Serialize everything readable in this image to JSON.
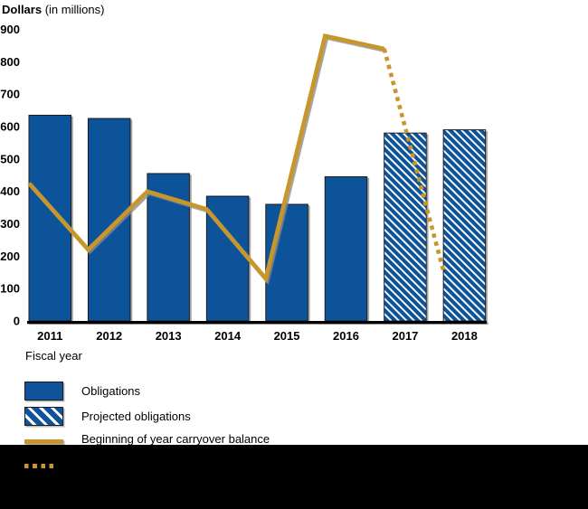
{
  "header": {
    "ylabel_bold": "Dollars",
    "ylabel_rest": " (in millions)"
  },
  "chart_data": {
    "type": "bar",
    "categories": [
      "2011",
      "2012",
      "2013",
      "2014",
      "2015",
      "2016",
      "2017",
      "2018"
    ],
    "series": [
      {
        "name": "Obligations",
        "type": "bar",
        "pattern": "solid",
        "values": [
          635,
          625,
          455,
          385,
          360,
          445,
          null,
          null
        ]
      },
      {
        "name": "Projected obligations",
        "type": "bar",
        "pattern": "hatched",
        "values": [
          null,
          null,
          null,
          null,
          null,
          null,
          580,
          590
        ]
      },
      {
        "name": "Beginning of year carryover balance",
        "type": "line",
        "pattern": "solid-then-dotted",
        "dotted_from_category": "2017",
        "values": [
          425,
          220,
          400,
          345,
          130,
          880,
          840,
          155
        ]
      }
    ],
    "xlabel": "Fiscal year",
    "ylabel": "Dollars (in millions)",
    "ylim": [
      0,
      900
    ],
    "ytick_step": 100,
    "grid": false,
    "legend_position": "bottom-left"
  },
  "legend": {
    "items": [
      {
        "label": "Obligations",
        "swatch": "solid-bar"
      },
      {
        "label": "Projected obligations",
        "swatch": "hatched-bar"
      },
      {
        "label": "Beginning of year carryover balance",
        "swatch": "solid-line"
      },
      {
        "label": "",
        "swatch": "dotted-line"
      }
    ]
  },
  "colors": {
    "bar_blue": "#10539a",
    "hatch_white": "#ffffff",
    "line_gold": "#c8972c",
    "axis": "#000000",
    "redaction": "#000000"
  }
}
